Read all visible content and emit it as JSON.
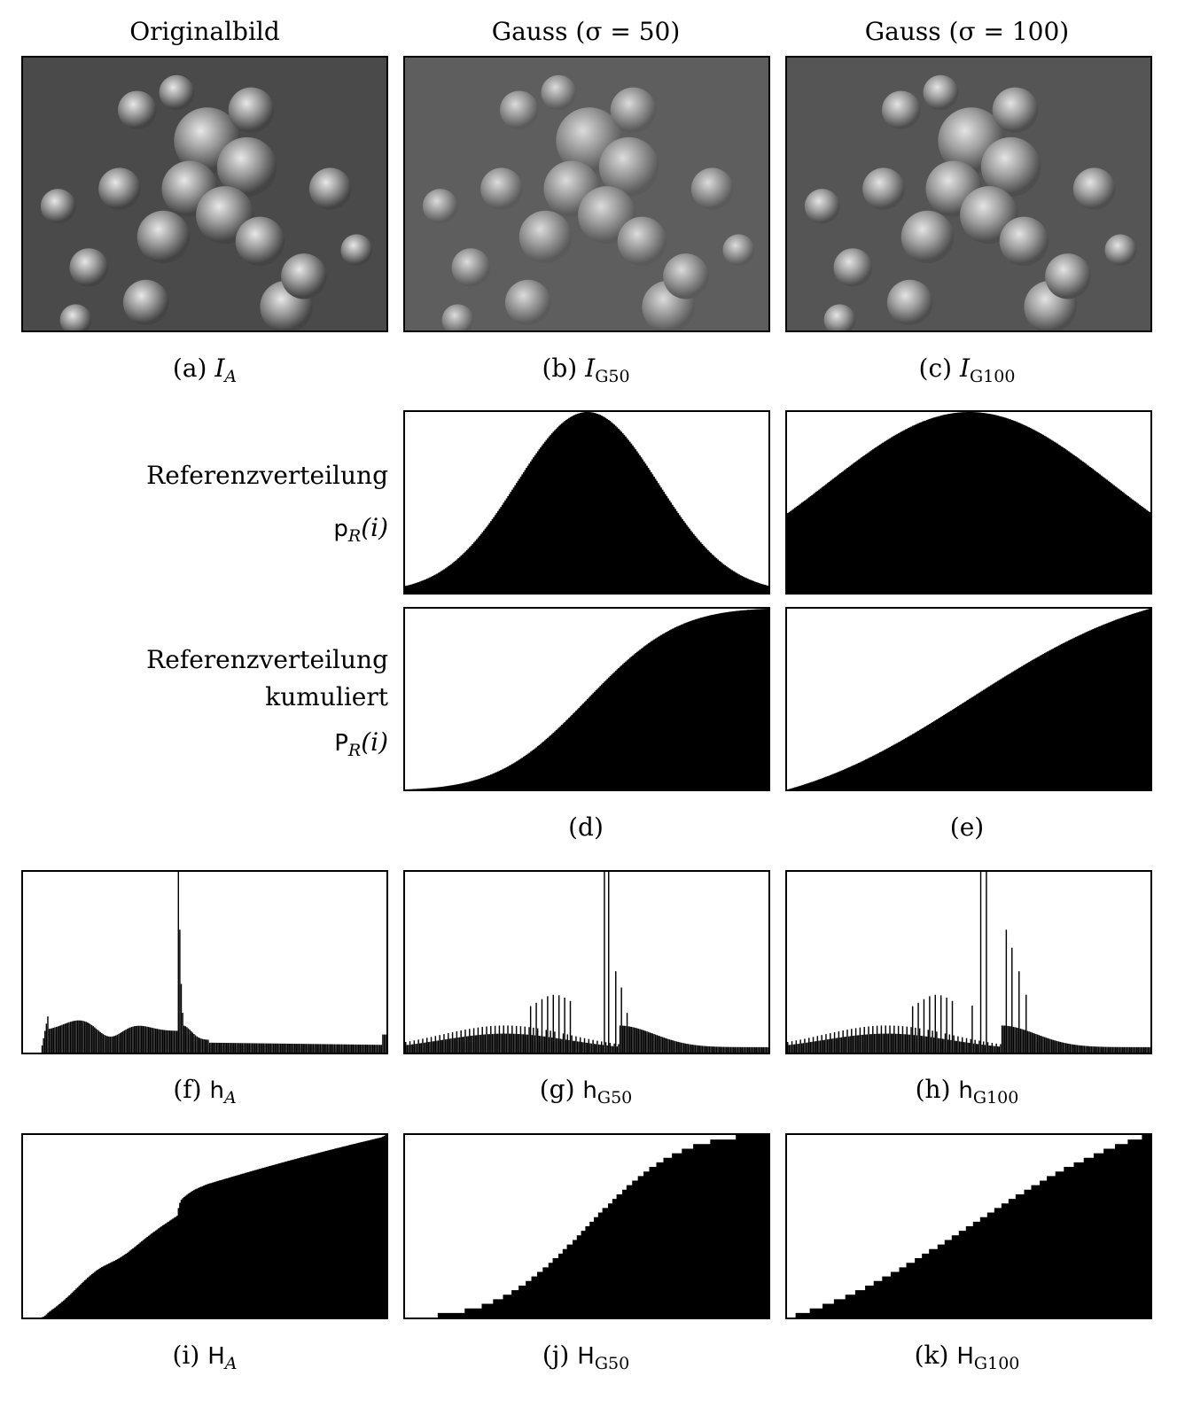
{
  "column_headers": [
    "Originalbild",
    "Gauss (σ = 50)",
    "Gauss (σ = 100)"
  ],
  "row_labels": {
    "density": [
      "Referenzverteilung",
      "p",
      "R",
      "(i)"
    ],
    "cumulative": [
      "Referenzverteilung",
      "kumuliert",
      "P",
      "R",
      "(i)"
    ]
  },
  "captions": {
    "a": [
      "(a)",
      "I",
      "A"
    ],
    "b": [
      "(b)",
      "I",
      "G50"
    ],
    "c": [
      "(c)",
      "I",
      "G100"
    ],
    "d": "(d)",
    "e": "(e)",
    "f": [
      "(f)",
      "h",
      "A"
    ],
    "g": [
      "(g)",
      "h",
      "G50"
    ],
    "h": [
      "(h)",
      "h",
      "G100"
    ],
    "i": [
      "(i)",
      "H",
      "A"
    ],
    "j": [
      "(j)",
      "H",
      "G50"
    ],
    "k": [
      "(k)",
      "H",
      "G100"
    ]
  },
  "chart_data": [
    {
      "id": "d_density",
      "type": "area",
      "distribution": "gaussian",
      "mu": 128,
      "sigma": 50,
      "xlim": [
        0,
        255
      ]
    },
    {
      "id": "e_density",
      "type": "area",
      "distribution": "gaussian",
      "mu": 128,
      "sigma": 100,
      "xlim": [
        0,
        255
      ]
    },
    {
      "id": "d_cumulative",
      "type": "area",
      "distribution": "gaussian-cdf",
      "mu": 128,
      "sigma": 50,
      "xlim": [
        0,
        255
      ]
    },
    {
      "id": "e_cumulative",
      "type": "area",
      "distribution": "gaussian-cdf",
      "mu": 128,
      "sigma": 100,
      "xlim": [
        0,
        255
      ]
    },
    {
      "id": "f_hist",
      "type": "bar",
      "xlim": [
        0,
        255
      ]
    },
    {
      "id": "g_hist",
      "type": "bar",
      "xlim": [
        0,
        255
      ]
    },
    {
      "id": "h_hist",
      "type": "bar",
      "xlim": [
        0,
        255
      ]
    },
    {
      "id": "i_cum",
      "type": "area",
      "xlim": [
        0,
        255
      ]
    },
    {
      "id": "j_cum",
      "type": "area",
      "xlim": [
        0,
        255
      ]
    },
    {
      "id": "k_cum",
      "type": "area",
      "xlim": [
        0,
        255
      ]
    }
  ],
  "colors": {
    "ink": "#000000",
    "paper": "#ffffff"
  }
}
